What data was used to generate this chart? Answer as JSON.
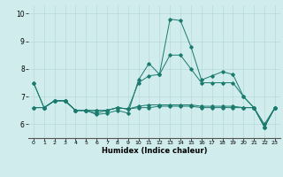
{
  "x": [
    0,
    1,
    2,
    3,
    4,
    5,
    6,
    7,
    8,
    9,
    10,
    11,
    12,
    13,
    14,
    15,
    16,
    17,
    18,
    19,
    20,
    21,
    22,
    23
  ],
  "line1": [
    7.5,
    6.6,
    6.85,
    6.85,
    6.5,
    6.5,
    6.35,
    6.4,
    6.5,
    6.4,
    7.6,
    8.2,
    7.8,
    9.8,
    9.75,
    8.8,
    7.6,
    7.75,
    7.9,
    7.8,
    7.0,
    6.6,
    5.9,
    6.6
  ],
  "line2": [
    7.5,
    6.6,
    6.85,
    6.85,
    6.5,
    6.5,
    6.4,
    6.5,
    6.6,
    6.55,
    7.5,
    7.75,
    7.8,
    8.5,
    8.5,
    8.0,
    7.5,
    7.5,
    7.5,
    7.5,
    7.0,
    6.6,
    5.9,
    6.6
  ],
  "line3": [
    6.6,
    6.6,
    6.85,
    6.85,
    6.5,
    6.5,
    6.5,
    6.5,
    6.6,
    6.55,
    6.65,
    6.7,
    6.7,
    6.7,
    6.7,
    6.7,
    6.65,
    6.65,
    6.65,
    6.65,
    6.6,
    6.6,
    6.0,
    6.6
  ],
  "line4": [
    6.6,
    6.6,
    6.85,
    6.85,
    6.5,
    6.5,
    6.5,
    6.5,
    6.6,
    6.55,
    6.6,
    6.6,
    6.65,
    6.65,
    6.65,
    6.65,
    6.6,
    6.6,
    6.6,
    6.6,
    6.6,
    6.6,
    5.9,
    6.6
  ],
  "color": "#1a7a6e",
  "bg_color": "#d0ecec",
  "grid_color": "#b8d8d8",
  "xlabel": "Humidex (Indice chaleur)",
  "ylim": [
    5.5,
    10.3
  ],
  "xlim": [
    -0.5,
    23.5
  ],
  "yticks": [
    6,
    7,
    8,
    9,
    10
  ],
  "xtick_labels": [
    "0",
    "1",
    "2",
    "3",
    "4",
    "5",
    "6",
    "7",
    "8",
    "9",
    "10",
    "11",
    "12",
    "13",
    "14",
    "15",
    "16",
    "17",
    "18",
    "19",
    "20",
    "21",
    "22",
    "23"
  ]
}
